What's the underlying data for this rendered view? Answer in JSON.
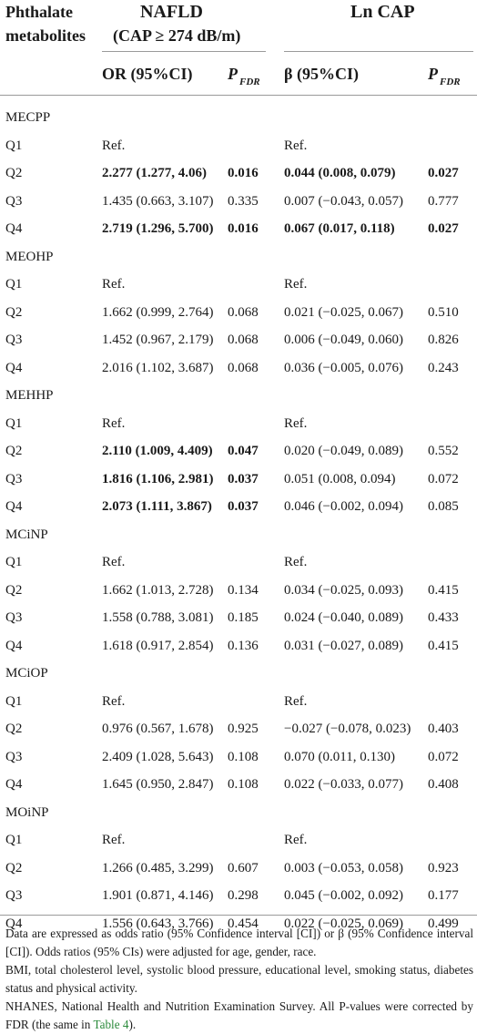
{
  "header": {
    "col1_line1": "Phthalate",
    "col1_line2": "metabolites",
    "nafld_line1": "NAFLD",
    "nafld_line2": "(CAP ≥ 274 dB/m)",
    "lncap": "Ln CAP",
    "or_label": "OR (95%CI)",
    "p_label": "P",
    "p_sub": "FDR",
    "beta_label": "β (95%CI)",
    "p2_label": "P",
    "p2_sub": "FDR"
  },
  "groups": [
    {
      "name": "MECPP",
      "rows": [
        {
          "q": "Q1",
          "or": "Ref.",
          "p1": "",
          "beta": "Ref.",
          "p2": "",
          "or_bold": false,
          "beta_bold": false
        },
        {
          "q": "Q2",
          "or": "2.277 (1.277, 4.06)",
          "p1": "0.016",
          "beta": "0.044 (0.008, 0.079)",
          "p2": "0.027",
          "or_bold": true,
          "beta_bold": true
        },
        {
          "q": "Q3",
          "or": "1.435 (0.663, 3.107)",
          "p1": "0.335",
          "beta": "0.007 (−0.043, 0.057)",
          "p2": "0.777",
          "or_bold": false,
          "beta_bold": false
        },
        {
          "q": "Q4",
          "or": "2.719 (1.296, 5.700)",
          "p1": "0.016",
          "beta": "0.067 (0.017, 0.118)",
          "p2": "0.027",
          "or_bold": true,
          "beta_bold": true
        }
      ]
    },
    {
      "name": "MEOHP",
      "rows": [
        {
          "q": "Q1",
          "or": "Ref.",
          "p1": "",
          "beta": "Ref.",
          "p2": "",
          "or_bold": false,
          "beta_bold": false
        },
        {
          "q": "Q2",
          "or": "1.662 (0.999, 2.764)",
          "p1": "0.068",
          "beta": "0.021 (−0.025, 0.067)",
          "p2": "0.510",
          "or_bold": false,
          "beta_bold": false
        },
        {
          "q": "Q3",
          "or": "1.452 (0.967, 2.179)",
          "p1": "0.068",
          "beta": "0.006 (−0.049, 0.060)",
          "p2": "0.826",
          "or_bold": false,
          "beta_bold": false
        },
        {
          "q": "Q4",
          "or": "2.016 (1.102, 3.687)",
          "p1": "0.068",
          "beta": "0.036 (−0.005, 0.076)",
          "p2": "0.243",
          "or_bold": false,
          "beta_bold": false
        }
      ]
    },
    {
      "name": "MEHHP",
      "rows": [
        {
          "q": "Q1",
          "or": "Ref.",
          "p1": "",
          "beta": "Ref.",
          "p2": "",
          "or_bold": false,
          "beta_bold": false
        },
        {
          "q": "Q2",
          "or": "2.110 (1.009, 4.409)",
          "p1": "0.047",
          "beta": "0.020 (−0.049, 0.089)",
          "p2": "0.552",
          "or_bold": true,
          "beta_bold": false
        },
        {
          "q": "Q3",
          "or": "1.816 (1.106, 2.981)",
          "p1": "0.037",
          "beta": "0.051 (0.008, 0.094)",
          "p2": "0.072",
          "or_bold": true,
          "beta_bold": false
        },
        {
          "q": "Q4",
          "or": "2.073 (1.111, 3.867)",
          "p1": "0.037",
          "beta": "0.046 (−0.002, 0.094)",
          "p2": "0.085",
          "or_bold": true,
          "beta_bold": false
        }
      ]
    },
    {
      "name": "MCiNP",
      "rows": [
        {
          "q": "Q1",
          "or": "Ref.",
          "p1": "",
          "beta": "Ref.",
          "p2": "",
          "or_bold": false,
          "beta_bold": false
        },
        {
          "q": "Q2",
          "or": "1.662 (1.013, 2.728)",
          "p1": "0.134",
          "beta": "0.034 (−0.025, 0.093)",
          "p2": "0.415",
          "or_bold": false,
          "beta_bold": false
        },
        {
          "q": "Q3",
          "or": "1.558 (0.788, 3.081)",
          "p1": "0.185",
          "beta": "0.024 (−0.040, 0.089)",
          "p2": "0.433",
          "or_bold": false,
          "beta_bold": false
        },
        {
          "q": "Q4",
          "or": "1.618 (0.917, 2.854)",
          "p1": "0.136",
          "beta": "0.031 (−0.027, 0.089)",
          "p2": "0.415",
          "or_bold": false,
          "beta_bold": false
        }
      ]
    },
    {
      "name": "MCiOP",
      "rows": [
        {
          "q": "Q1",
          "or": "Ref.",
          "p1": "",
          "beta": "Ref.",
          "p2": "",
          "or_bold": false,
          "beta_bold": false
        },
        {
          "q": "Q2",
          "or": "0.976 (0.567, 1.678)",
          "p1": "0.925",
          "beta": "−0.027 (−0.078, 0.023)",
          "p2": "0.403",
          "or_bold": false,
          "beta_bold": false
        },
        {
          "q": "Q3",
          "or": "2.409 (1.028, 5.643)",
          "p1": "0.108",
          "beta": "0.070 (0.011, 0.130)",
          "p2": "0.072",
          "or_bold": false,
          "beta_bold": false
        },
        {
          "q": "Q4",
          "or": "1.645 (0.950, 2.847)",
          "p1": "0.108",
          "beta": "0.022 (−0.033, 0.077)",
          "p2": "0.408",
          "or_bold": false,
          "beta_bold": false
        }
      ]
    },
    {
      "name": "MOiNP",
      "rows": [
        {
          "q": "Q1",
          "or": "Ref.",
          "p1": "",
          "beta": "Ref.",
          "p2": "",
          "or_bold": false,
          "beta_bold": false
        },
        {
          "q": "Q2",
          "or": "1.266 (0.485, 3.299)",
          "p1": "0.607",
          "beta": "0.003 (−0.053, 0.058)",
          "p2": "0.923",
          "or_bold": false,
          "beta_bold": false
        },
        {
          "q": "Q3",
          "or": "1.901 (0.871, 4.146)",
          "p1": "0.298",
          "beta": "0.045 (−0.002, 0.092)",
          "p2": "0.177",
          "or_bold": false,
          "beta_bold": false
        },
        {
          "q": "Q4",
          "or": "1.556 (0.643, 3.766)",
          "p1": "0.454",
          "beta": "0.022 (−0.025, 0.069)",
          "p2": "0.499",
          "or_bold": false,
          "beta_bold": false
        }
      ]
    }
  ],
  "footer": {
    "note1": "Data are expressed as odds ratio (95% Confidence interval [CI]) or β (95% Confidence interval [CI]). Odds ratios (95% CIs) were adjusted for age, gender, race.",
    "note2": "BMI, total cholesterol level, systolic blood pressure, educational level, smoking status, diabetes status and physical activity.",
    "note3_pre": "NHANES, National Health and Nutrition Examination Survey. All P-values were corrected by FDR (the same in ",
    "note3_link": "Table 4",
    "note3_post": ")."
  },
  "colors": {
    "rule": "#9a9a9a",
    "link": "#2a8a3a",
    "text": "#1a1a1a"
  }
}
